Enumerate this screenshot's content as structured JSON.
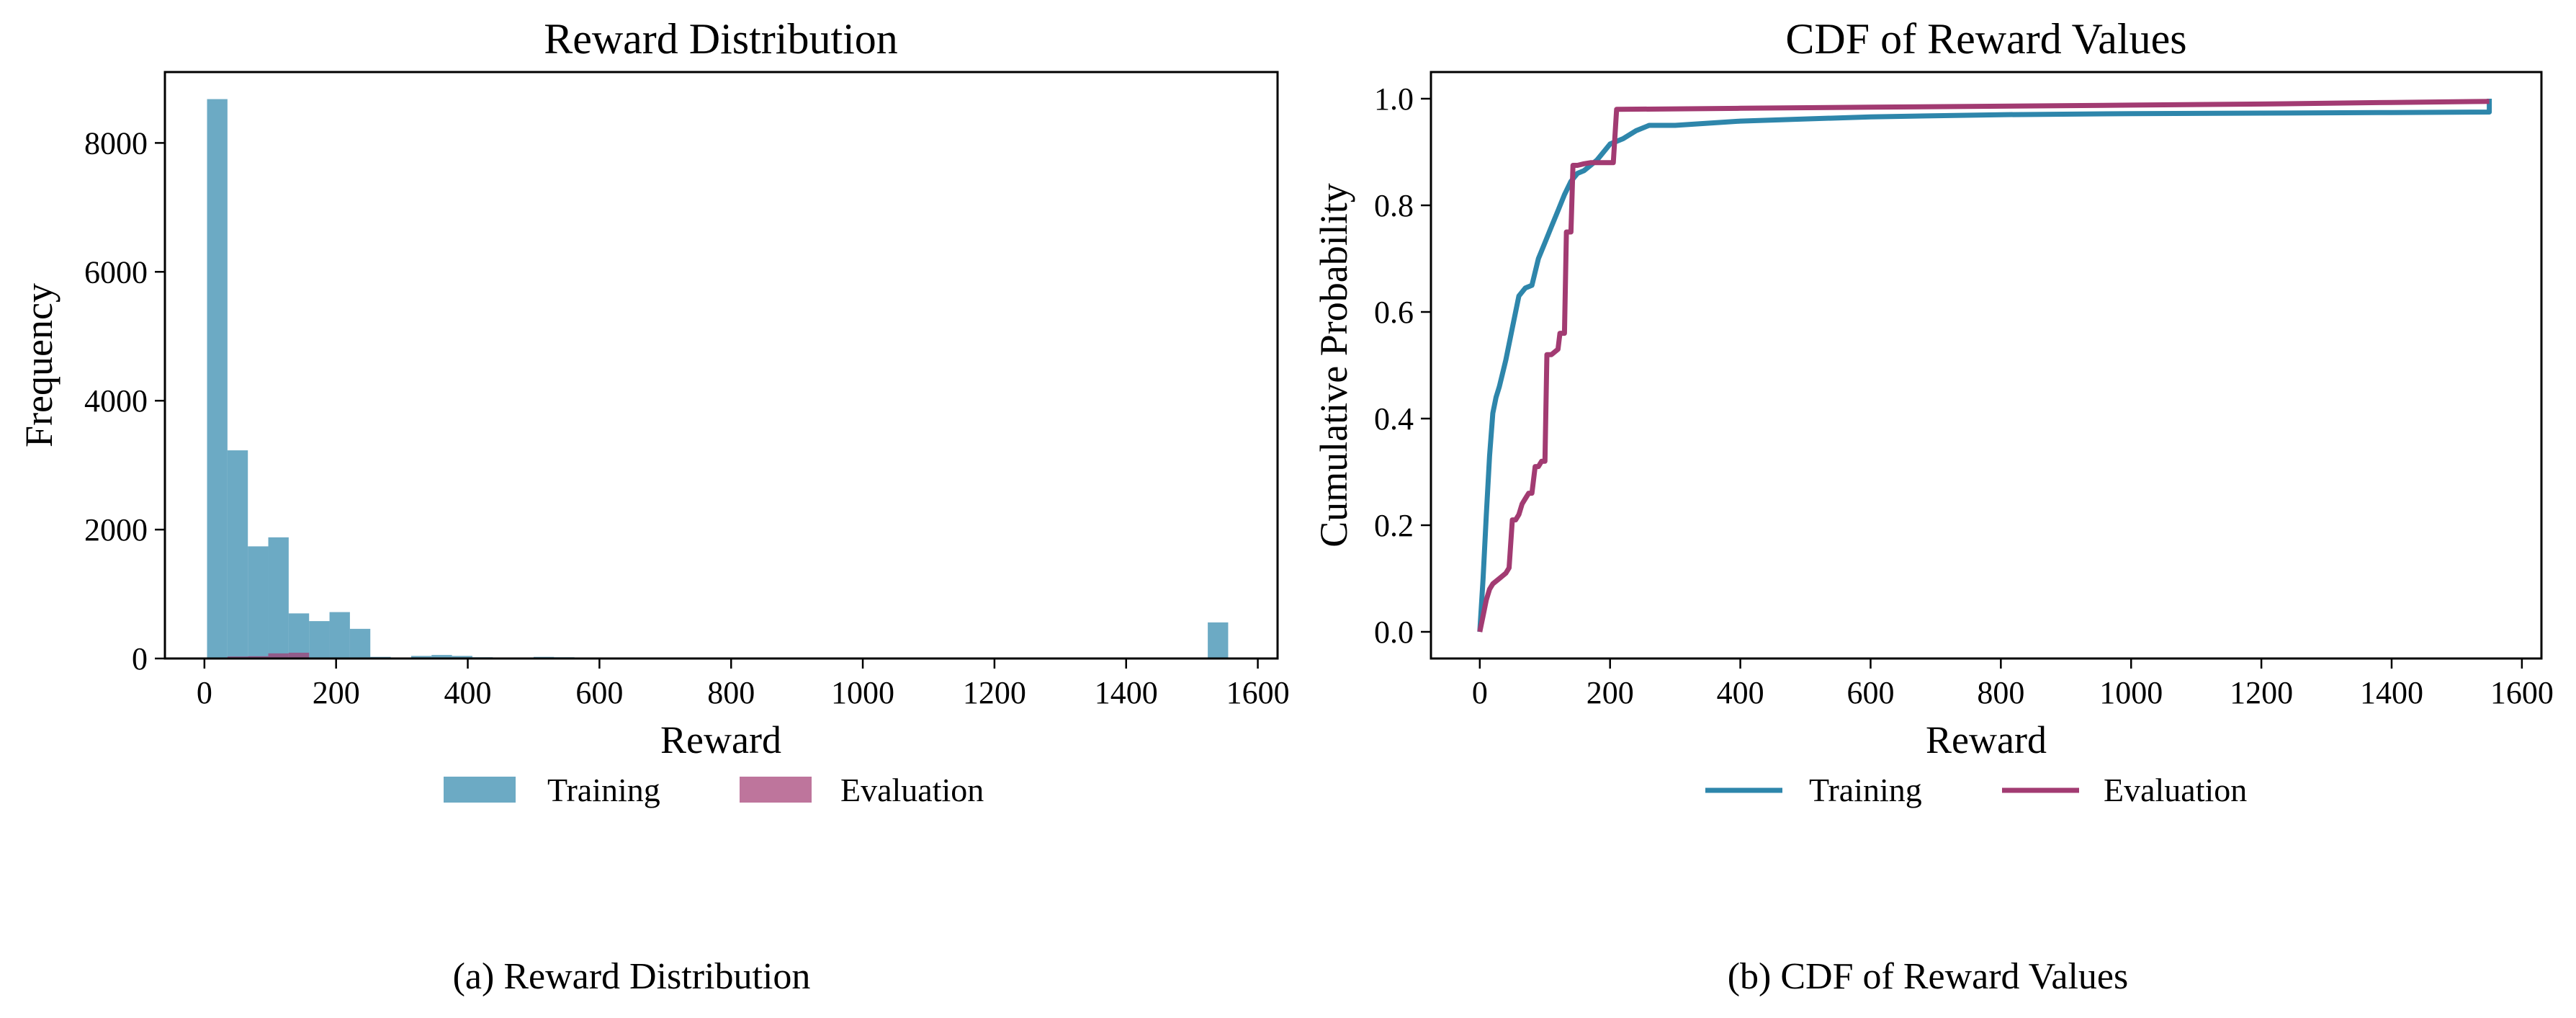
{
  "colors": {
    "training": "#2E86AB",
    "evaluation": "#A23B72"
  },
  "chart_data": [
    {
      "type": "bar",
      "title": "Reward Distribution",
      "xlabel": "Reward",
      "ylabel": "Frequency",
      "xlim": [
        -60,
        1630
      ],
      "ylim": [
        0,
        9100
      ],
      "xticks": [
        0,
        200,
        400,
        600,
        800,
        1000,
        1200,
        1400,
        1600
      ],
      "yticks": [
        0,
        2000,
        4000,
        6000,
        8000
      ],
      "grid": false,
      "legend_placement": "below",
      "bin_width": 31,
      "series": [
        {
          "name": "Training",
          "color": "#2E86AB",
          "opacity": 0.7,
          "bin_starts": [
            4,
            35,
            66,
            97,
            128,
            159,
            190,
            221,
            252,
            314,
            345,
            376,
            407,
            438,
            469,
            500,
            531,
            562,
            686,
            1524
          ],
          "values": [
            8680,
            3230,
            1740,
            1880,
            700,
            580,
            720,
            460,
            25,
            40,
            55,
            40,
            20,
            15,
            15,
            25,
            20,
            15,
            10,
            560
          ]
        },
        {
          "name": "Evaluation",
          "color": "#A23B72",
          "opacity": 0.7,
          "bin_starts": [
            4,
            35,
            66,
            97,
            128
          ],
          "values": [
            10,
            30,
            35,
            80,
            90
          ]
        }
      ]
    },
    {
      "type": "line",
      "title": "CDF of Reward Values",
      "xlabel": "Reward",
      "ylabel": "Cumulative Probability",
      "xlim": [
        -75,
        1630
      ],
      "ylim": [
        -0.05,
        1.05
      ],
      "xticks": [
        0,
        200,
        400,
        600,
        800,
        1000,
        1200,
        1400,
        1600
      ],
      "yticks": [
        0.0,
        0.2,
        0.4,
        0.6,
        0.8,
        1.0
      ],
      "grid": false,
      "legend_placement": "below",
      "series": [
        {
          "name": "Training",
          "color": "#2E86AB",
          "x": [
            0,
            5,
            10,
            15,
            20,
            25,
            30,
            40,
            50,
            60,
            70,
            80,
            90,
            100,
            110,
            120,
            130,
            140,
            150,
            160,
            170,
            180,
            190,
            200,
            220,
            240,
            260,
            300,
            400,
            600,
            800,
            1000,
            1200,
            1400,
            1550,
            1550
          ],
          "y": [
            0.0,
            0.1,
            0.22,
            0.33,
            0.41,
            0.44,
            0.46,
            0.51,
            0.57,
            0.63,
            0.645,
            0.65,
            0.7,
            0.73,
            0.76,
            0.79,
            0.82,
            0.845,
            0.86,
            0.865,
            0.875,
            0.885,
            0.9,
            0.915,
            0.925,
            0.94,
            0.95,
            0.95,
            0.958,
            0.966,
            0.97,
            0.972,
            0.973,
            0.974,
            0.975,
            1.0
          ]
        },
        {
          "name": "Evaluation",
          "color": "#A23B72",
          "x": [
            0,
            5,
            10,
            15,
            20,
            30,
            40,
            45,
            50,
            55,
            60,
            65,
            70,
            75,
            80,
            85,
            90,
            95,
            100,
            103,
            110,
            120,
            123,
            130,
            133,
            140,
            143,
            150,
            160,
            170,
            180,
            190,
            205,
            210,
            400,
            600,
            800,
            1000,
            1200,
            1400,
            1550
          ],
          "y": [
            0.0,
            0.03,
            0.06,
            0.08,
            0.09,
            0.1,
            0.11,
            0.12,
            0.21,
            0.21,
            0.22,
            0.24,
            0.25,
            0.26,
            0.26,
            0.31,
            0.31,
            0.32,
            0.32,
            0.52,
            0.52,
            0.53,
            0.56,
            0.56,
            0.75,
            0.75,
            0.875,
            0.875,
            0.878,
            0.88,
            0.88,
            0.88,
            0.88,
            0.98,
            0.982,
            0.984,
            0.986,
            0.988,
            0.99,
            0.993,
            0.995
          ]
        }
      ]
    }
  ],
  "captions": {
    "a": "(a) Reward Distribution",
    "b": "(b) CDF of Reward Values"
  }
}
